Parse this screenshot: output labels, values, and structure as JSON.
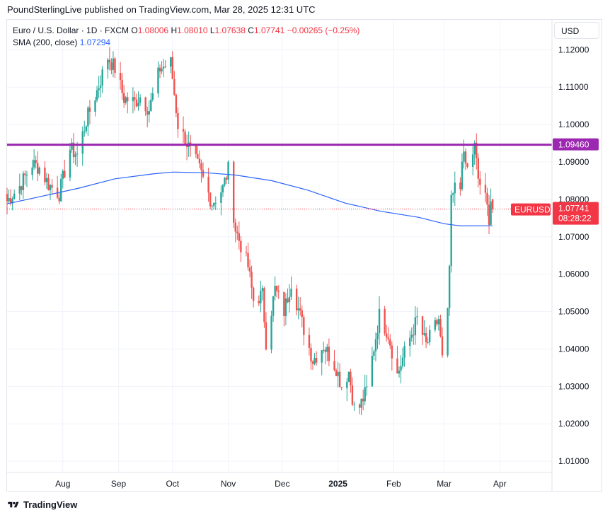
{
  "header": {
    "published": "PoundSterlingLive published on TradingView.com, Mar 28, 2025 12:31 UTC"
  },
  "legend": {
    "symbol": "Euro / U.S. Dollar · 1D · FXCM",
    "o_label": "O",
    "o_value": "1.08006",
    "h_label": "H",
    "h_value": "1.08010",
    "l_label": "L",
    "l_value": "1.07638",
    "c_label": "C",
    "c_value": "1.07741",
    "change": "−0.00265 (−0.25%)",
    "sma_label": "SMA (200, close)",
    "sma_value": "1.07294"
  },
  "currency_button": "USD",
  "footer": {
    "brand": "TradingView"
  },
  "colors": {
    "up": "#26a69a",
    "down": "#ef5350",
    "sma": "#2962ff",
    "resistance": "#9c27b0",
    "price_tag": "#f23645"
  },
  "chart_data": {
    "type": "candlestick",
    "ylim": [
      1.007,
      1.128
    ],
    "y_ticks": [
      "1.12000",
      "1.11000",
      "1.10000",
      "1.09000",
      "1.08000",
      "1.07000",
      "1.06000",
      "1.05000",
      "1.04000",
      "1.03000",
      "1.02000",
      "1.01000"
    ],
    "x_ticks": [
      "Aug",
      "Sep",
      "Oct",
      "Nov",
      "Dec",
      "2025",
      "Feb",
      "Mar",
      "Apr"
    ],
    "x_tick_dates": [
      "2024-08-01",
      "2024-09-01",
      "2024-10-01",
      "2024-11-01",
      "2024-12-01",
      "2025-01-01",
      "2025-02-01",
      "2025-03-01",
      "2025-04-01"
    ],
    "x_range": [
      "2024-07-01",
      "2025-04-30"
    ],
    "resistance_level": {
      "value": 1.0946,
      "label": "1.09460"
    },
    "last_price": {
      "value": 1.07741,
      "symbol": "EURUSD",
      "price_label": "1.07741",
      "countdown": "08:28:22"
    },
    "sma_200": [
      {
        "d": "2024-07-01",
        "v": 1.0788
      },
      {
        "d": "2024-07-20",
        "v": 1.0808
      },
      {
        "d": "2024-08-10",
        "v": 1.083
      },
      {
        "d": "2024-08-30",
        "v": 1.0855
      },
      {
        "d": "2024-09-20",
        "v": 1.0868
      },
      {
        "d": "2024-10-01",
        "v": 1.0873
      },
      {
        "d": "2024-10-20",
        "v": 1.0871
      },
      {
        "d": "2024-11-05",
        "v": 1.0865
      },
      {
        "d": "2024-11-25",
        "v": 1.085
      },
      {
        "d": "2024-12-15",
        "v": 1.0825
      },
      {
        "d": "2025-01-05",
        "v": 1.079
      },
      {
        "d": "2025-01-25",
        "v": 1.0768
      },
      {
        "d": "2025-02-15",
        "v": 1.0752
      },
      {
        "d": "2025-03-01",
        "v": 1.0735
      },
      {
        "d": "2025-03-10",
        "v": 1.0729
      },
      {
        "d": "2025-03-28",
        "v": 1.07294
      }
    ],
    "anchors": [
      {
        "d": "2024-07-01",
        "c": 1.0795
      },
      {
        "d": "2024-07-08",
        "c": 1.0835
      },
      {
        "d": "2024-07-15",
        "c": 1.0895
      },
      {
        "d": "2024-07-19",
        "c": 1.0885
      },
      {
        "d": "2024-07-24",
        "c": 1.084
      },
      {
        "d": "2024-07-30",
        "c": 1.0815
      },
      {
        "d": "2024-08-05",
        "c": 1.0935
      },
      {
        "d": "2024-08-09",
        "c": 1.092
      },
      {
        "d": "2024-08-14",
        "c": 1.101
      },
      {
        "d": "2024-08-20",
        "c": 1.109
      },
      {
        "d": "2024-08-26",
        "c": 1.118
      },
      {
        "d": "2024-08-30",
        "c": 1.115
      },
      {
        "d": "2024-09-04",
        "c": 1.107
      },
      {
        "d": "2024-09-10",
        "c": 1.106
      },
      {
        "d": "2024-09-13",
        "c": 1.1075
      },
      {
        "d": "2024-09-18",
        "c": 1.104
      },
      {
        "d": "2024-09-24",
        "c": 1.115
      },
      {
        "d": "2024-09-30",
        "c": 1.1165
      },
      {
        "d": "2024-10-04",
        "c": 1.1
      },
      {
        "d": "2024-10-10",
        "c": 1.094
      },
      {
        "d": "2024-10-16",
        "c": 1.088
      },
      {
        "d": "2024-10-23",
        "c": 1.079
      },
      {
        "d": "2024-10-29",
        "c": 1.083
      },
      {
        "d": "2024-11-01",
        "c": 1.088
      },
      {
        "d": "2024-11-05",
        "c": 1.072
      },
      {
        "d": "2024-11-12",
        "c": 1.062
      },
      {
        "d": "2024-11-15",
        "c": 1.053
      },
      {
        "d": "2024-11-20",
        "c": 1.0545
      },
      {
        "d": "2024-11-22",
        "c": 1.042
      },
      {
        "d": "2024-11-27",
        "c": 1.056
      },
      {
        "d": "2024-12-02",
        "c": 1.05
      },
      {
        "d": "2024-12-06",
        "c": 1.058
      },
      {
        "d": "2024-12-12",
        "c": 1.047
      },
      {
        "d": "2024-12-18",
        "c": 1.037
      },
      {
        "d": "2024-12-24",
        "c": 1.041
      },
      {
        "d": "2024-12-31",
        "c": 1.035
      },
      {
        "d": "2025-01-03",
        "c": 1.03
      },
      {
        "d": "2025-01-07",
        "c": 1.034
      },
      {
        "d": "2025-01-10",
        "c": 1.024
      },
      {
        "d": "2025-01-13",
        "c": 1.0245
      },
      {
        "d": "2025-01-17",
        "c": 1.029
      },
      {
        "d": "2025-01-24",
        "c": 1.049
      },
      {
        "d": "2025-01-29",
        "c": 1.044
      },
      {
        "d": "2025-02-03",
        "c": 1.033
      },
      {
        "d": "2025-02-07",
        "c": 1.039
      },
      {
        "d": "2025-02-14",
        "c": 1.048
      },
      {
        "d": "2025-02-19",
        "c": 1.041
      },
      {
        "d": "2025-02-26",
        "c": 1.048
      },
      {
        "d": "2025-02-28",
        "c": 1.037
      },
      {
        "d": "2025-03-03",
        "c": 1.049
      },
      {
        "d": "2025-03-04",
        "c": 1.062
      },
      {
        "d": "2025-03-05",
        "c": 1.079
      },
      {
        "d": "2025-03-07",
        "c": 1.083
      },
      {
        "d": "2025-03-10",
        "c": 1.083
      },
      {
        "d": "2025-03-11",
        "c": 1.092
      },
      {
        "d": "2025-03-14",
        "c": 1.088
      },
      {
        "d": "2025-03-18",
        "c": 1.094
      },
      {
        "d": "2025-03-20",
        "c": 1.0855
      },
      {
        "d": "2025-03-24",
        "c": 1.08
      },
      {
        "d": "2025-03-26",
        "c": 1.0752
      },
      {
        "d": "2025-03-27",
        "c": 1.08006
      },
      {
        "d": "2025-03-28",
        "c": 1.07741
      }
    ]
  }
}
